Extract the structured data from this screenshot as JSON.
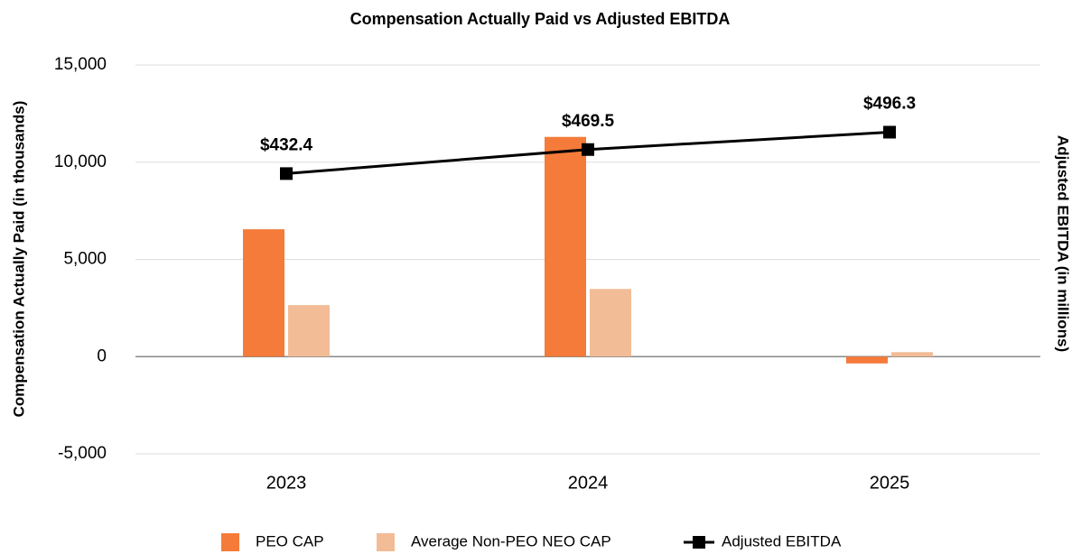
{
  "chart_data": {
    "type": "bar_line",
    "title": "Compensation Actually Paid vs Adjusted EBITDA",
    "y_label": "Compensation Actually Paid (in thousands)",
    "y2_label": "Adjusted EBITDA (in millions)",
    "categories": [
      "2023",
      "2024",
      "2025"
    ],
    "series": [
      {
        "name": "PEO CAP",
        "type": "bar",
        "color": "#f47b3a",
        "values": [
          6550,
          11300,
          -350
        ]
      },
      {
        "name": "Average Non-PEO NEO CAP",
        "type": "bar",
        "color": "#f2bc96",
        "values": [
          2650,
          3480,
          230
        ]
      },
      {
        "name": "Adjusted EBITDA",
        "type": "line",
        "axis": "y2",
        "color": "#000000",
        "values": [
          432.4,
          469.5,
          496.3
        ],
        "value_labels": [
          "$432.4",
          "$469.5",
          "$496.3"
        ]
      }
    ],
    "ylim": [
      -5000,
      15000
    ],
    "yticks": [
      {
        "value": -5000,
        "label": "-5,000"
      },
      0,
      {
        "value": 5000,
        "label": "5,000"
      },
      {
        "value": 10000,
        "label": "10,000"
      },
      {
        "value": 15000,
        "label": "15,000"
      }
    ],
    "y2lim": [
      0,
      600
    ],
    "grid": true,
    "legend": "bottom"
  }
}
